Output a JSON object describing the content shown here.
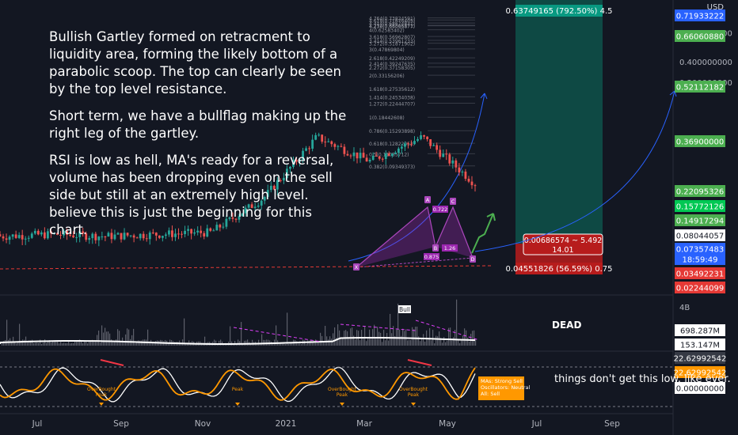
{
  "currency": "USD",
  "annotations": {
    "main_notes": [
      "Bullish Gartley formed on retracment to liquidity area, forming the likely bottom of a parabolic scoop. The top can clearly be seen by the top level resistance.",
      "Short term, we have a bullflag making up the right leg of the gartley.",
      "RSI is low as hell, MA's ready for a reversal, volume has been dropping even on the sell side but still at an extremely high level. believe this is just the beginning for this chart."
    ],
    "volume_note": "DEAD",
    "rsi_note": "things don't get this low. like ever.",
    "bull_tag": "Bull",
    "overbought_labels": [
      "OverBought Peak",
      "Peak",
      "OverBought Peak",
      "OverBought Peak"
    ]
  },
  "position_tool": {
    "target_label": "0.63749165 (792.50%) 4.5",
    "center_line1": "0.00686574 ~ 5.492",
    "center_line2": "14.01",
    "stop_label": "0.04551826 (56.59%) 0.75"
  },
  "fib_levels": [
    "4.764(0.73824591)",
    "4.618(0.71676405)",
    "4.414(0.68674831)",
    "4.272(0.66596571)",
    "4.236(0.66065877)",
    "4(0.62583402)",
    "3.618(0.56962807)",
    "3.414(0.53961233)",
    "3.272(0.51871902)",
    "3(0.47869804)",
    "2.618(0.42249209)",
    "2.414(0.39247635)",
    "2.272(0.37158305)",
    "2(0.33156206)",
    "1.618(0.27535612)",
    "1.414(0.24534038)",
    "1.272(0.22444707)",
    "1(0.18442608)",
    "0.786(0.15293898)",
    "0.618(0.12822052)",
    "0.5(0.11085712)",
    "0.382(0.09349373)"
  ],
  "pattern_labels": {
    "points": [
      "X",
      "A",
      "B",
      "C",
      "D"
    ],
    "ratios": [
      "0.875",
      "0.722",
      "1.26"
    ]
  },
  "price_axis": {
    "ticks": [
      "0.600000000",
      "0.400000000",
      "0.300000000"
    ],
    "tags": [
      {
        "text": "0.71933222",
        "color": "#2962ff"
      },
      {
        "text": "0.66060880",
        "color": "#4caf50"
      },
      {
        "text": "0.52112182",
        "color": "#4caf50"
      },
      {
        "text": "0.36900000",
        "color": "#4caf50"
      },
      {
        "text": "0.22095326",
        "color": "#4caf50"
      },
      {
        "text": "0.15772126",
        "color": "#00c853"
      },
      {
        "text": "0.14917294",
        "color": "#4caf50"
      },
      {
        "text": "0.08044057",
        "color": "#ffffff"
      },
      {
        "text": "0.07357483",
        "color": "#2962ff"
      },
      {
        "text": "18:59:49",
        "color": "#2962ff"
      },
      {
        "text": "0.03492231",
        "color": "#e53935"
      },
      {
        "text": "0.02244099",
        "color": "#e53935"
      }
    ]
  },
  "volume_axis": {
    "top_label": "4B",
    "tags": [
      {
        "text": "698.287M",
        "color": "#ffffff"
      },
      {
        "text": "153.147M",
        "color": "#ffffff"
      }
    ]
  },
  "rsi_axis": {
    "tags": [
      {
        "text": "22.62992542",
        "color": "#363a45"
      },
      {
        "text": "22.62992542",
        "color": "#ff9800"
      },
      {
        "text": "0.00000000",
        "color": "#ffffff"
      }
    ]
  },
  "indicator_box": {
    "lines": [
      "MAs:     Strong Sell",
      "Oscillators: Neutral",
      "All:   Sell"
    ]
  },
  "time_axis": [
    "Jul",
    "Sep",
    "Nov",
    "2021",
    "Mar",
    "May",
    "Jul",
    "Sep"
  ],
  "chart_data": {
    "type": "candlestick",
    "title": "",
    "y_scale": "log",
    "x_range": [
      "Jun 2020",
      "Oct 2021"
    ],
    "price_series_approx": {
      "x": [
        "Jul",
        "Sep",
        "Nov",
        "2021",
        "Feb",
        "Mar",
        "Apr",
        "Apr",
        "May",
        "May"
      ],
      "close": [
        0.035,
        0.036,
        0.035,
        0.036,
        0.037,
        0.06,
        0.14,
        0.1,
        0.14,
        0.073
      ]
    },
    "gartley_points": [
      {
        "label": "X",
        "price": 0.0355
      },
      {
        "label": "A",
        "price": 0.18
      },
      {
        "label": "B",
        "price": 0.09
      },
      {
        "label": "C",
        "price": 0.17
      },
      {
        "label": "D",
        "price": 0.0735
      }
    ],
    "volume_peaks_millions": [
      698.287,
      153.147
    ],
    "rsi_last": 22.62992542,
    "legend": "none",
    "grid": false
  }
}
